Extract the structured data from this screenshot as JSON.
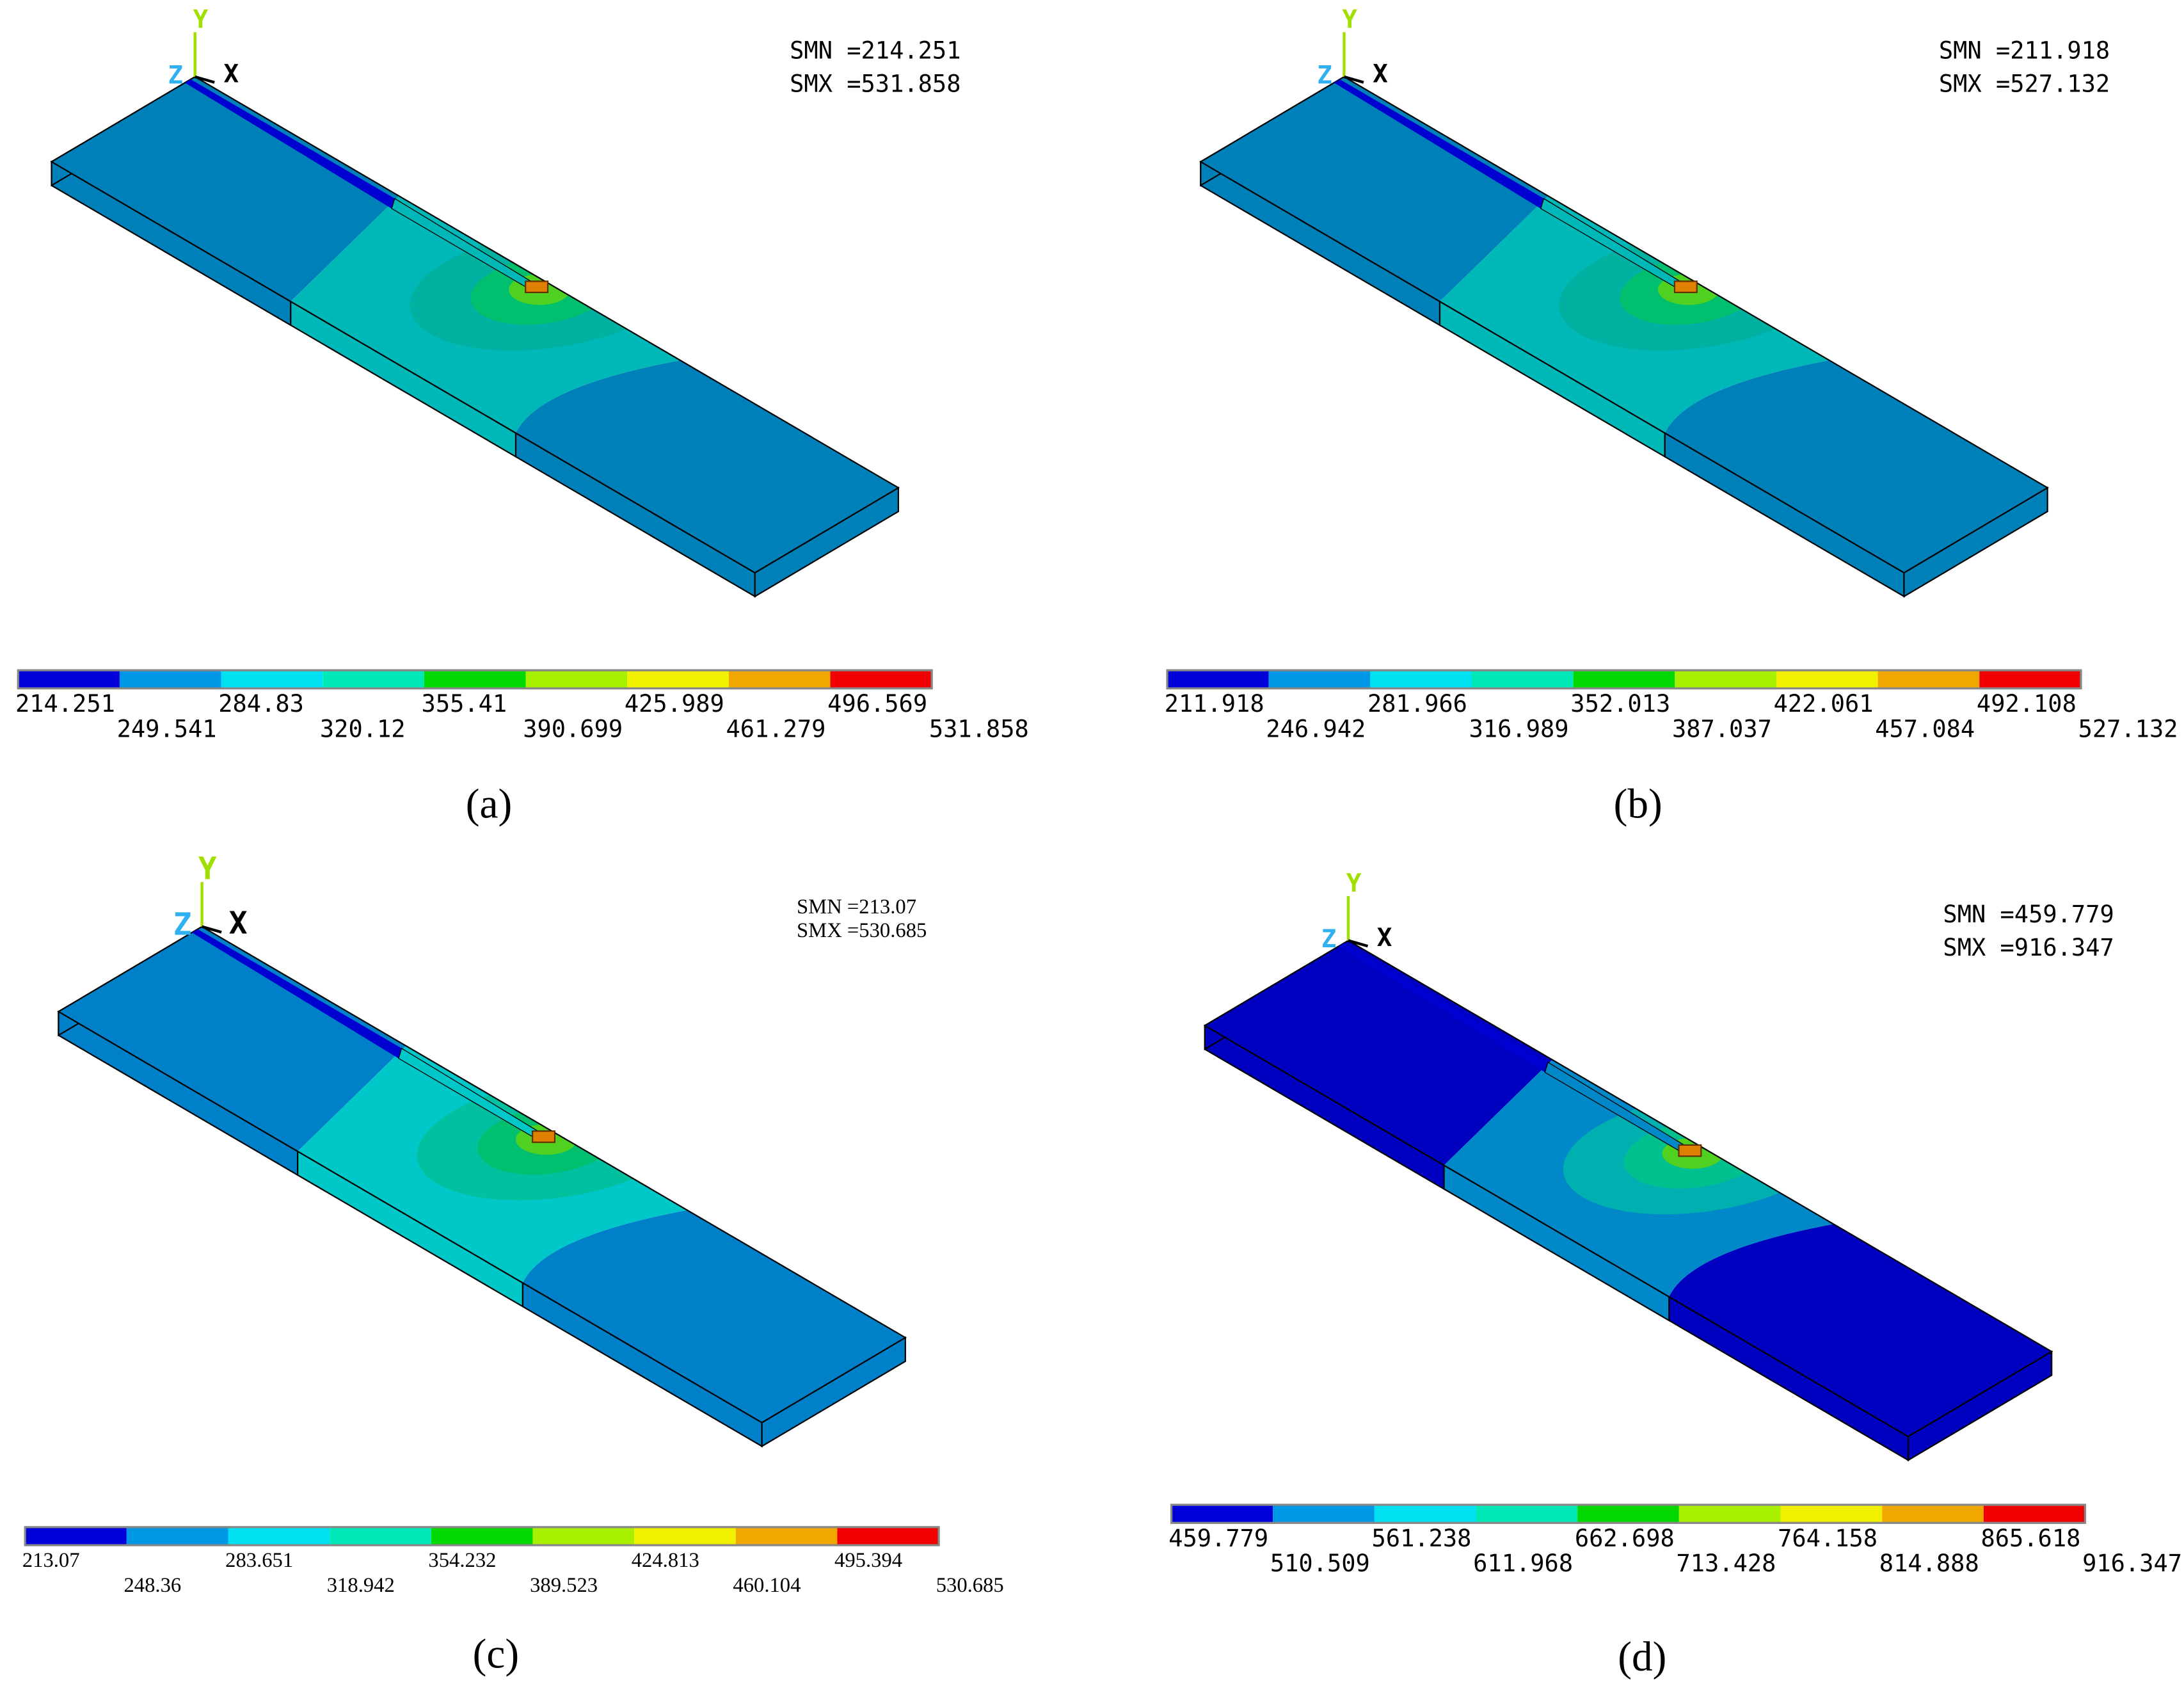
{
  "panels": [
    {
      "label": "(a)",
      "smn": "SMN =214.251",
      "smx": "SMX =531.858",
      "axes": {
        "y": "Y",
        "z": "Z",
        "x": "X"
      },
      "legend": [
        "214.251",
        "249.541",
        "284.83",
        "320.12",
        "355.41",
        "390.699",
        "425.989",
        "461.279",
        "496.569",
        "531.858"
      ]
    },
    {
      "label": "(b)",
      "smn": "SMN =211.918",
      "smx": "SMX =527.132",
      "axes": {
        "y": "Y",
        "z": "Z",
        "x": "X"
      },
      "legend": [
        "211.918",
        "246.942",
        "281.966",
        "316.989",
        "352.013",
        "387.037",
        "422.061",
        "457.084",
        "492.108",
        "527.132"
      ]
    },
    {
      "label": "(c)",
      "smn": "SMN =213.07",
      "smx": "SMX =530.685",
      "axes": {
        "y": "Y",
        "z": "Z",
        "x": "X"
      },
      "legend": [
        "213.07",
        "248.36",
        "283.651",
        "318.942",
        "354.232",
        "389.523",
        "424.813",
        "460.104",
        "495.394",
        "530.685"
      ]
    },
    {
      "label": "(d)",
      "smn": "SMN =459.779",
      "smx": "SMX =916.347",
      "axes": {
        "y": "Y",
        "z": "Z",
        "x": "X"
      },
      "legend": [
        "459.779",
        "510.509",
        "561.238",
        "611.968",
        "662.698",
        "713.428",
        "764.158",
        "814.888",
        "865.618",
        "916.347"
      ]
    }
  ]
}
